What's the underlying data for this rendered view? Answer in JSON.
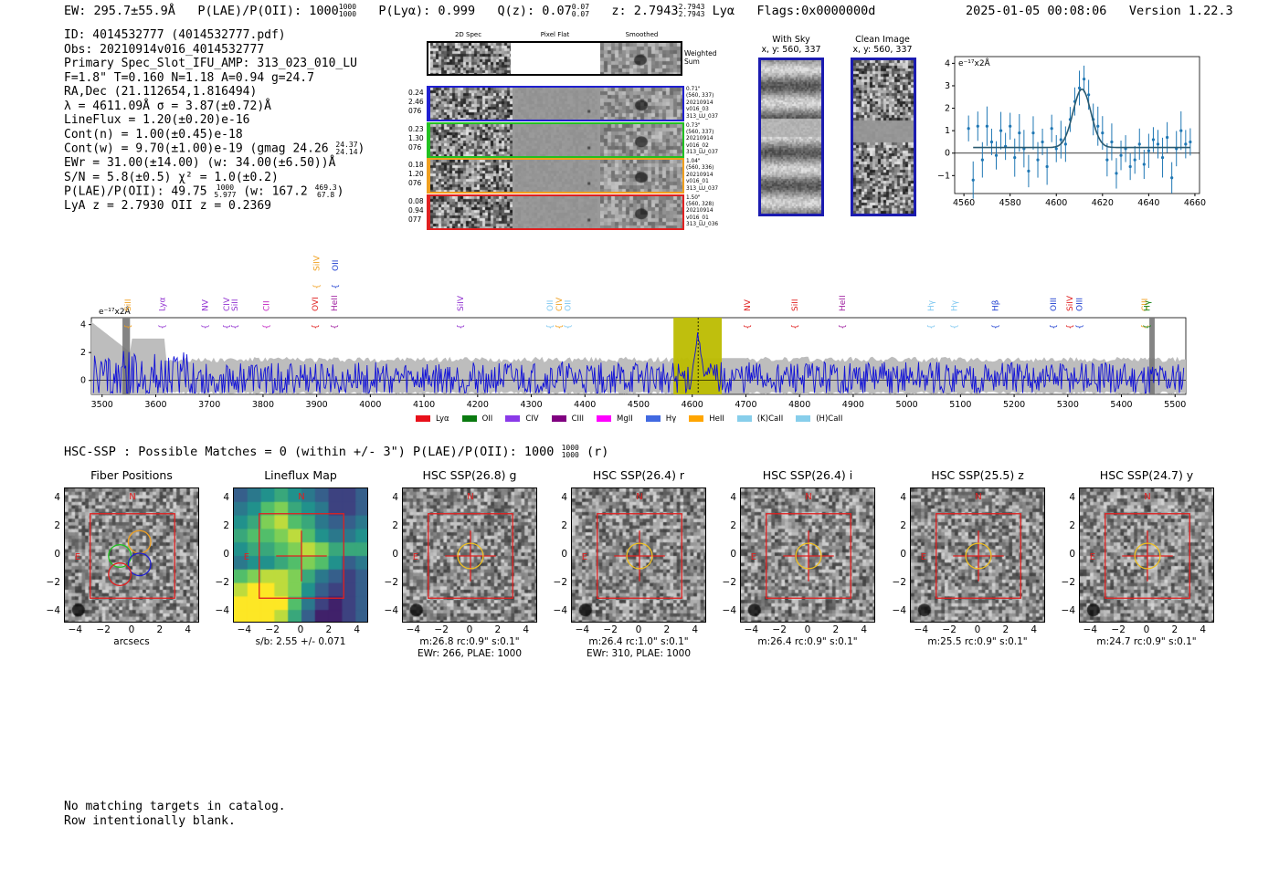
{
  "header": {
    "ew_label": "EW: 295.7±55.9Å",
    "plae_label": "P(LAE)/P(OII): 1000",
    "plae_frac": [
      "1000",
      "1000"
    ],
    "plya_label": "P(Lyα): 0.999",
    "qz_label": "Q(z): 0.07",
    "qz_frac": [
      "0.07",
      "0.07"
    ],
    "z_label": "z: 2.7943",
    "z_frac": [
      "2.7943",
      "2.7943"
    ],
    "z_line": "Lyα",
    "flags": "Flags:0x0000000d",
    "timestamp": "2025-01-05 00:08:06",
    "version": "Version 1.22.3"
  },
  "info": {
    "id": "ID: 4014532777 (4014532777.pdf)",
    "obs": "Obs: 20210914v016_4014532777",
    "primary": "Primary Spec_Slot_IFU_AMP: 313_023_010_LU",
    "params": "F=1.8\"  T=0.160  N=1.18  A=0.94  g=24.7",
    "radec": "RA,Dec (21.112654,1.816494)",
    "lambda": "λ = 4611.09Å  σ = 3.87(±0.72)Å",
    "lineflux": "LineFlux = 1.20(±0.20)e-16",
    "contn": "Cont(n) = 1.00(±0.45)e-18",
    "contw": "Cont(w) = 9.70(±1.00)e-19 (gmag 24.26",
    "contw_frac": [
      "24.37",
      "24.14"
    ],
    "ewr": "EWr = 31.00(±14.00) (w: 34.00(±6.50))Å",
    "sn": "S/N = 5.8(±0.5)  χ² = 1.0(±0.2)",
    "plae": "P(LAE)/P(OII): 49.75",
    "plae_frac": [
      "1000",
      "5.977"
    ],
    "plae_w": "(w: 167.2",
    "plae_w_frac": [
      "469.3",
      "67.8"
    ],
    "lya_z": "LyA z = 2.7930  OII z = 0.2369"
  },
  "cutouts": {
    "col_titles": [
      "2D Spec",
      "Pixel Flat",
      "Smoothed"
    ],
    "weighted_label": "Weighted Sum",
    "rows": [
      {
        "left": [
          "0.24",
          "2.46",
          "076"
        ],
        "right": [
          "0.71\"",
          "(560, 337)",
          "20210914",
          "v016_03",
          "313_LU_037"
        ],
        "color": "#1f1fd0"
      },
      {
        "left": [
          "0.23",
          "1.30",
          "076"
        ],
        "right": [
          "0.73\"",
          "(560, 337)",
          "20210914",
          "v016_02",
          "313_LU_037"
        ],
        "color": "#22c022"
      },
      {
        "left": [
          "0.18",
          "1.20",
          "076"
        ],
        "right": [
          "1.04\"",
          "(560, 336)",
          "20210914",
          "v016_01",
          "313_LU_037"
        ],
        "color": "#f0a020"
      },
      {
        "left": [
          "0.08",
          "0.94",
          "077"
        ],
        "right": [
          "1.50\"",
          "(560, 328)",
          "20210914",
          "v016_01",
          "313_LU_036"
        ],
        "color": "#e02020"
      }
    ],
    "with_sky_title": "With Sky",
    "with_sky_sub": "x, y: 560, 337",
    "clean_title": "Clean Image",
    "clean_sub": "x, y: 560, 337"
  },
  "fit_chart": {
    "units": "e⁻¹⁷x2Å",
    "xticks": [
      "4560",
      "4580",
      "4600",
      "4620",
      "4640",
      "4660"
    ],
    "yticks": [
      "4",
      "3",
      "2",
      "1",
      "0",
      "−1"
    ]
  },
  "spectrum": {
    "units": "e⁻¹⁷x2Å",
    "xticks": [
      "3500",
      "3600",
      "3700",
      "3800",
      "3900",
      "4000",
      "4100",
      "4200",
      "4300",
      "4400",
      "4500",
      "4600",
      "4700",
      "4800",
      "4900",
      "5000",
      "5100",
      "5200",
      "5300",
      "5400",
      "5500"
    ],
    "yticks": [
      "4",
      "2",
      "0"
    ],
    "lines_top": [
      {
        "label": "SiIV",
        "color": "#f0a020",
        "x": 3900
      },
      {
        "label": "OII",
        "color": "#1f3fd0",
        "x": 3935
      }
    ],
    "lines": [
      {
        "label": "SiII",
        "color": "#f0a020",
        "x": 3548
      },
      {
        "label": "Lyα",
        "color": "#9030d0",
        "x": 3612
      },
      {
        "label": "NV",
        "color": "#9030d0",
        "x": 3692
      },
      {
        "label": "SiII",
        "color": "#9030d0",
        "x": 3747
      },
      {
        "label": "CIV",
        "color": "#9030d0",
        "x": 3732
      },
      {
        "label": "CII",
        "color": "#c020c0",
        "x": 3806
      },
      {
        "label": "OVI",
        "color": "#e02020",
        "x": 3897
      },
      {
        "label": "HeII",
        "color": "#a020a0",
        "x": 3933
      },
      {
        "label": "SiIV",
        "color": "#9030d0",
        "x": 4168
      },
      {
        "label": "OII",
        "color": "#80c8f0",
        "x": 4335
      },
      {
        "label": "CIV",
        "color": "#f0a020",
        "x": 4352
      },
      {
        "label": "OII",
        "color": "#80c8f0",
        "x": 4368
      },
      {
        "label": "NV",
        "color": "#e02020",
        "x": 4703
      },
      {
        "label": "SiII",
        "color": "#e02020",
        "x": 4791
      },
      {
        "label": "HeII",
        "color": "#a020a0",
        "x": 4880
      },
      {
        "label": "Hγ",
        "color": "#80c8f0",
        "x": 5045
      },
      {
        "label": "Hγ",
        "color": "#80c8f0",
        "x": 5088
      },
      {
        "label": "Hβ",
        "color": "#1f3fd0",
        "x": 5165
      },
      {
        "label": "OIII",
        "color": "#1f3fd0",
        "x": 5273
      },
      {
        "label": "SiIV",
        "color": "#e02020",
        "x": 5304
      },
      {
        "label": "OIII",
        "color": "#1f3fd0",
        "x": 5322
      },
      {
        "label": "CIII",
        "color": "#f0a020",
        "x": 5443
      },
      {
        "label": "Hγ",
        "color": "#108010",
        "x": 5448
      }
    ],
    "legend": [
      {
        "label": "Lyα",
        "color": "#e8101a"
      },
      {
        "label": "OII",
        "color": "#0a7a10"
      },
      {
        "label": "CIV",
        "color": "#8a3ae8"
      },
      {
        "label": "CIII",
        "color": "#800080"
      },
      {
        "label": "MgII",
        "color": "#ff00ff"
      },
      {
        "label": "Hγ",
        "color": "#4169e1"
      },
      {
        "label": "HeII",
        "color": "#ffa500"
      },
      {
        "label": "(K)CaII",
        "color": "#87ceeb"
      },
      {
        "label": "(H)CaII",
        "color": "#87ceeb"
      }
    ]
  },
  "hsc": {
    "title_prefix": "HSC-SSP : Possible Matches = 0 (within +/- 3\")  P(LAE)/P(OII): 1000",
    "title_frac": [
      "1000",
      "1000"
    ],
    "title_suffix": "(r)",
    "panels": [
      {
        "title": "Fiber Positions",
        "xlabel": "arcsecs",
        "sub1": "",
        "sub2": ""
      },
      {
        "title": "Lineflux Map",
        "xlabel": "s/b: 2.55 +/- 0.071",
        "sub1": "",
        "sub2": ""
      },
      {
        "title": "HSC SSP(26.8) g",
        "xlabel": "",
        "sub1": "m:26.8 rc:0.9\"  s:0.1\"",
        "sub2": "EWr: 266, PLAE: 1000"
      },
      {
        "title": "HSC SSP(26.4) r",
        "xlabel": "",
        "sub1": "m:26.4 rc:1.0\"  s:0.1\"",
        "sub2": "EWr: 310, PLAE: 1000"
      },
      {
        "title": "HSC SSP(26.4) i",
        "xlabel": "",
        "sub1": "m:26.4 rc:0.9\"  s:0.1\"",
        "sub2": ""
      },
      {
        "title": "HSC SSP(25.5) z",
        "xlabel": "",
        "sub1": "m:25.5 rc:0.9\"  s:0.1\"",
        "sub2": ""
      },
      {
        "title": "HSC SSP(24.7) y",
        "xlabel": "",
        "sub1": "m:24.7 rc:0.9\"  s:0.1\"",
        "sub2": ""
      }
    ],
    "axis_ticks_x": [
      "−4",
      "−2",
      "0",
      "2",
      "4"
    ],
    "axis_ticks_y": [
      "4",
      "2",
      "0",
      "−2",
      "−4"
    ],
    "north": "N",
    "east": "E"
  },
  "footer": {
    "line1": "No matching targets in catalog.",
    "line2": "Row intentionally blank."
  },
  "chart_data": [
    {
      "type": "scatter",
      "title": "",
      "xlabel": "",
      "ylabel": "e⁻¹⁷x2Å",
      "xlim": [
        4556,
        4662
      ],
      "ylim": [
        -1.8,
        4.3
      ],
      "series": [
        {
          "x": [
            4562,
            4564,
            4566,
            4568,
            4570,
            4572,
            4574,
            4576,
            4578,
            4580,
            4582,
            4584,
            4586,
            4588,
            4590,
            4592,
            4594,
            4596,
            4598,
            4600,
            4602,
            4604,
            4606,
            4608,
            4610,
            4612,
            4614,
            4616,
            4618,
            4620,
            4622,
            4624,
            4626,
            4628,
            4630,
            4632,
            4634,
            4636,
            4638,
            4640,
            4642,
            4644,
            4646,
            4648,
            4650,
            4652,
            4654,
            4656,
            4658
          ],
          "y": [
            1.1,
            -1.2,
            1.2,
            -0.3,
            1.2,
            0.5,
            -0.1,
            1.0,
            0.3,
            1.2,
            -0.2,
            0.9,
            0.2,
            -0.8,
            0.9,
            -0.3,
            0.5,
            -0.6,
            1.1,
            0.2,
            0.6,
            0.4,
            1.5,
            2.3,
            2.9,
            3.3,
            2.6,
            1.5,
            1.2,
            0.9,
            -0.3,
            0.5,
            -0.9,
            -0.1,
            0.2,
            -0.6,
            -0.3,
            0.4,
            -0.5,
            0.1,
            0.6,
            0.4,
            -0.2,
            0.7,
            -1.1,
            0.2,
            1.0,
            0.4,
            0.5
          ]
        }
      ]
    },
    {
      "type": "line",
      "title": "",
      "xlabel": "",
      "ylabel": "e⁻¹⁷x2Å",
      "xlim": [
        3480,
        5520
      ],
      "ylim": [
        -1.0,
        4.5
      ],
      "highlight_region": [
        4565,
        4655
      ],
      "line_center": 4611
    }
  ]
}
